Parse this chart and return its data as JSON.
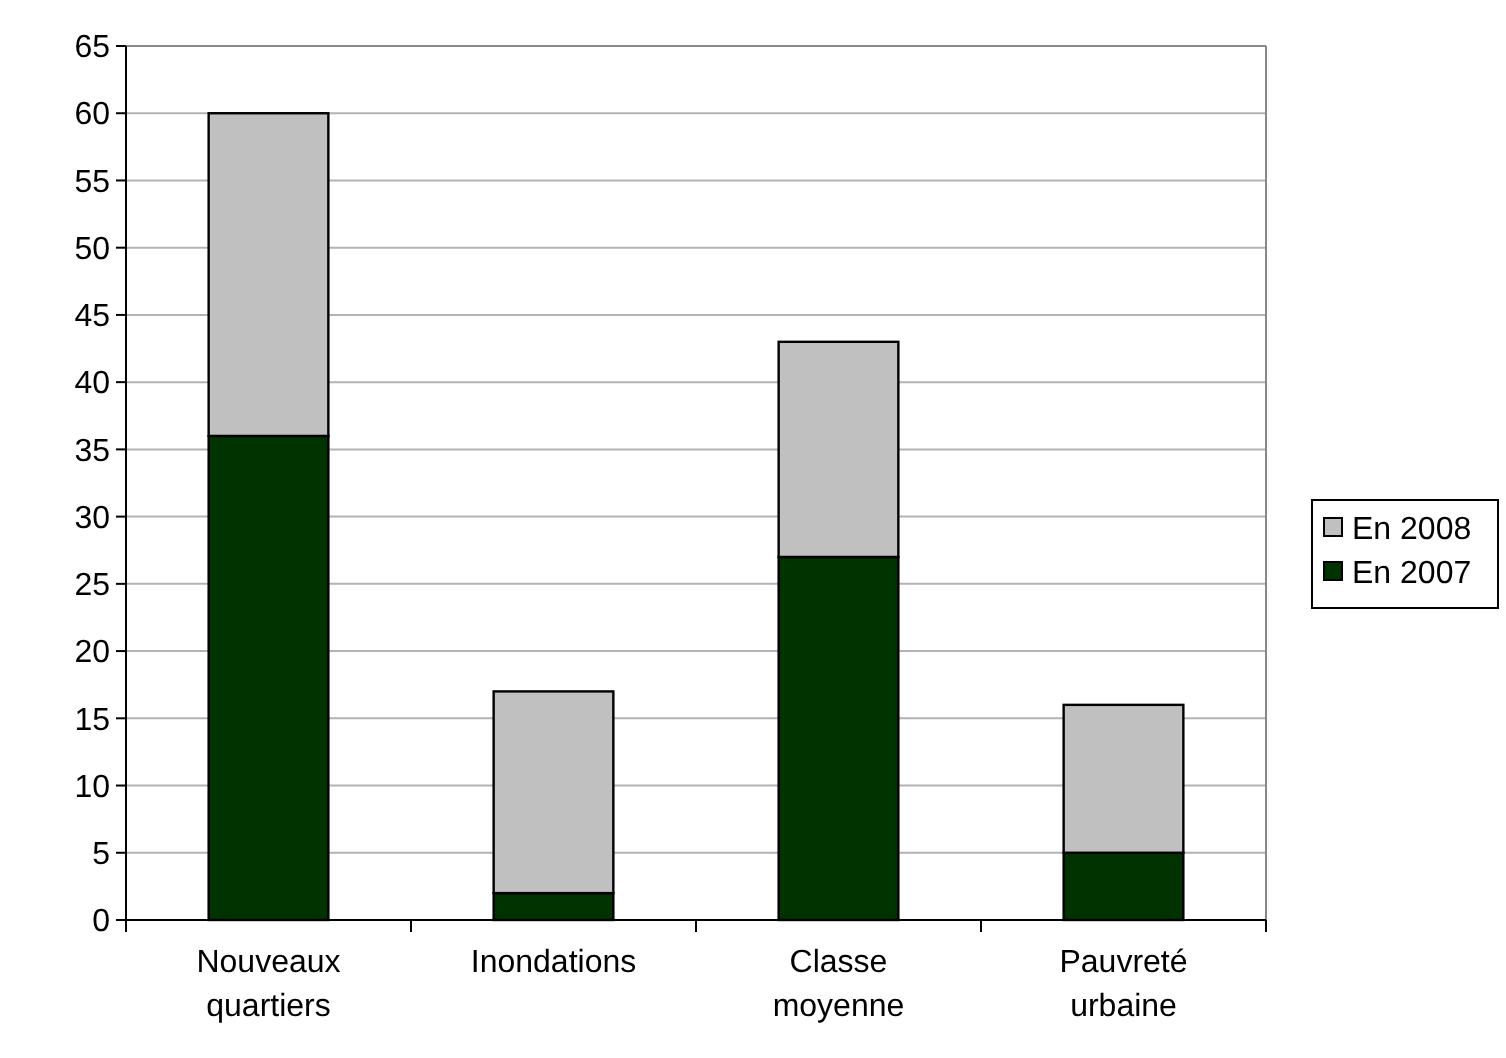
{
  "chart_data": {
    "type": "bar",
    "stacked": true,
    "categories": [
      "Nouveaux quartiers",
      "Inondations",
      "Classe moyenne",
      "Pauvreté urbaine"
    ],
    "series": [
      {
        "name": "En 2007",
        "color": "#003300",
        "values": [
          36,
          2,
          27,
          5
        ]
      },
      {
        "name": "En 2008",
        "color": "#c0c0c0",
        "values": [
          24,
          15,
          16,
          11
        ]
      }
    ],
    "ylim": [
      0,
      65
    ],
    "yticks": [
      0,
      5,
      10,
      15,
      20,
      25,
      30,
      35,
      40,
      45,
      50,
      55,
      60,
      65
    ],
    "grid": "y",
    "legend": "right"
  }
}
